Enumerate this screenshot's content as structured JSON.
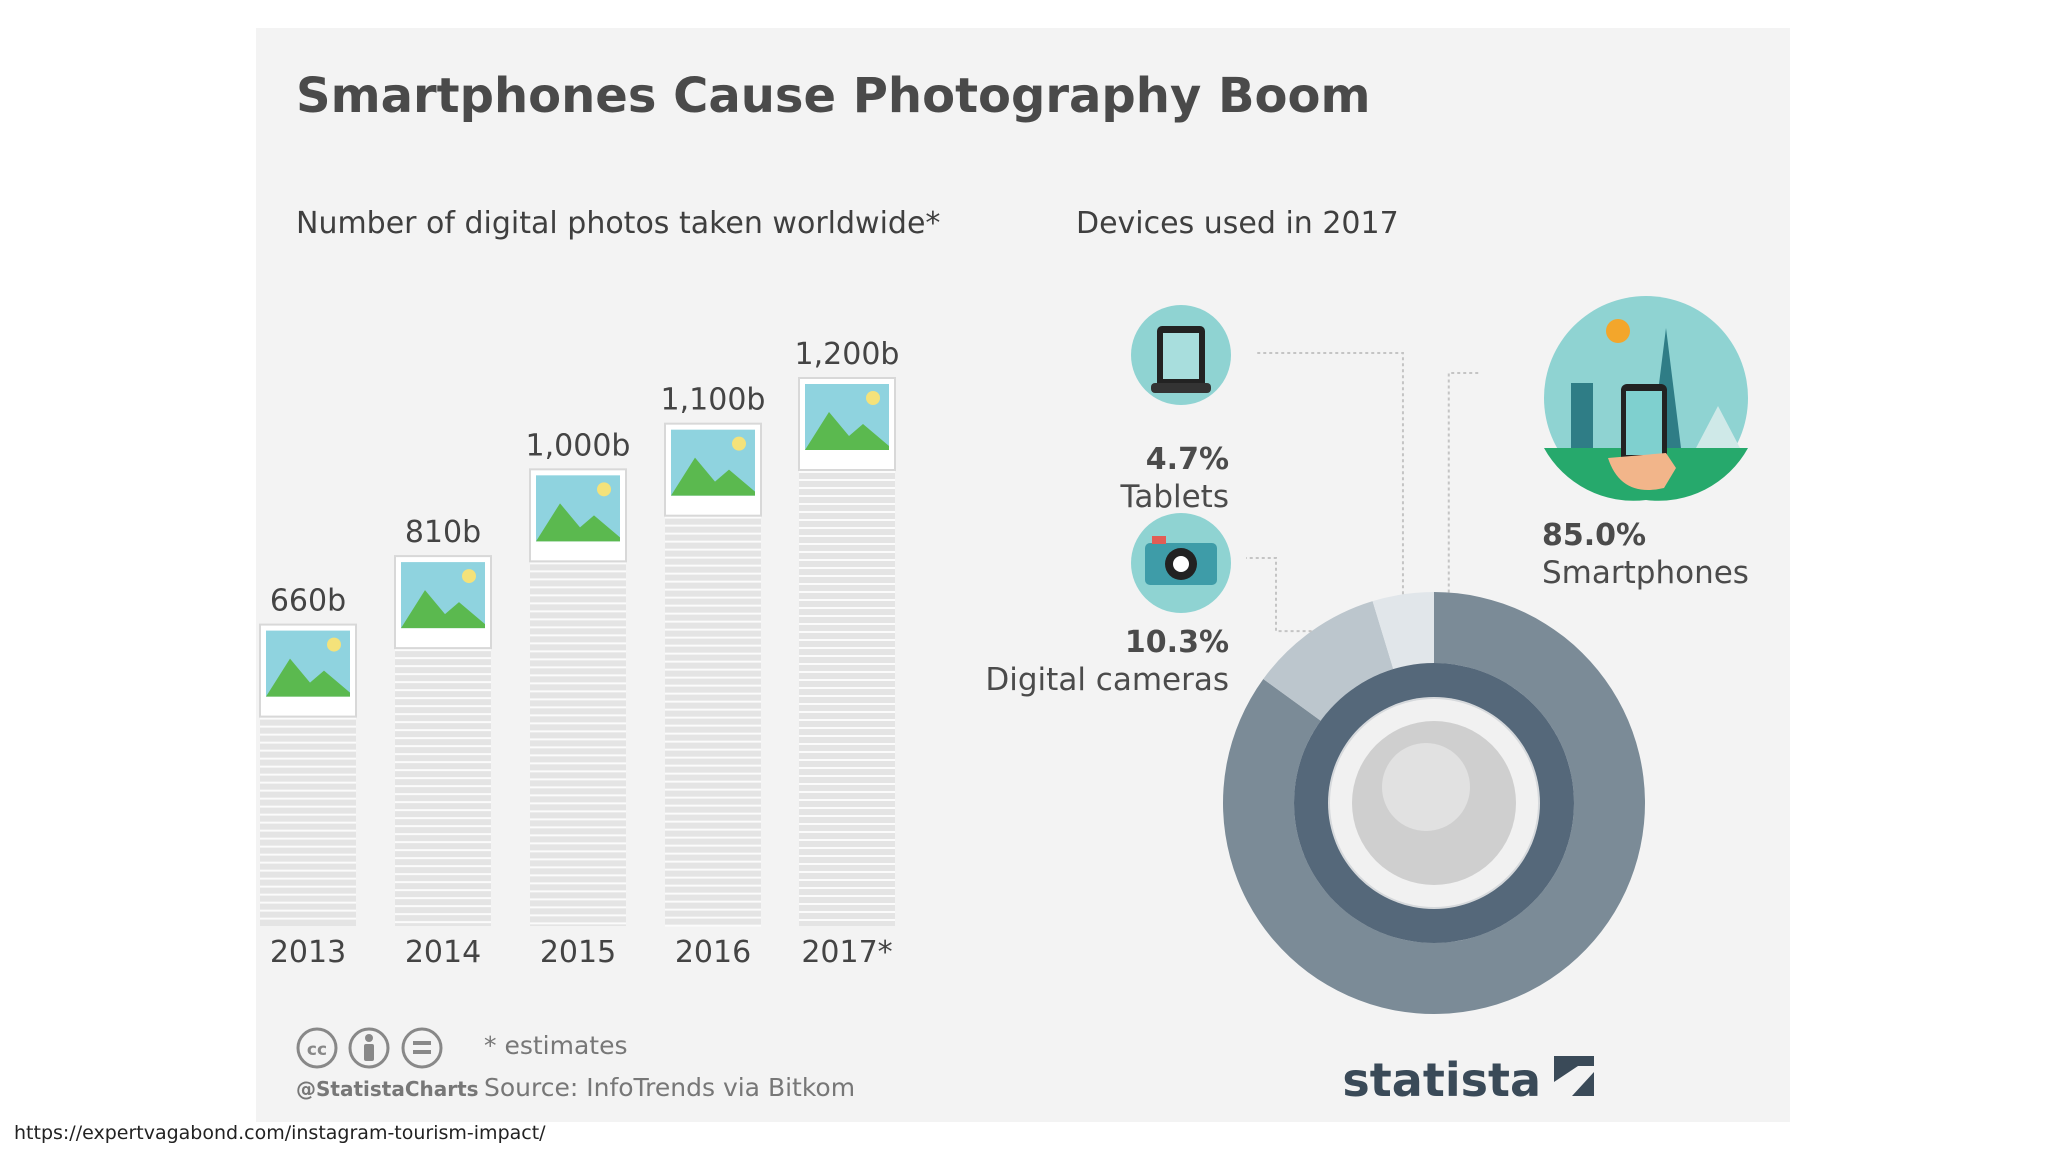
{
  "title": "Smartphones Cause Photography Boom",
  "left_subtitle": "Number of digital photos taken worldwide*",
  "right_subtitle": "Devices used in 2017",
  "footnote": "* estimates",
  "source": "Source: InfoTrends via Bitkom",
  "handle": "@StatistaCharts",
  "brand": "statista",
  "url": "https://expertvagabond.com/instagram-tourism-impact/",
  "chart_data": [
    {
      "type": "bar",
      "categories": [
        "2013",
        "2014",
        "2015",
        "2016",
        "2017*"
      ],
      "values": [
        660,
        810,
        1000,
        1100,
        1200
      ],
      "value_labels": [
        "660b",
        "810b",
        "1,000b",
        "1,100b",
        "1,200b"
      ],
      "title": "Number of digital photos taken worldwide*",
      "ylim": [
        0,
        1200
      ]
    },
    {
      "type": "pie",
      "title": "Devices used in 2017",
      "slices": [
        {
          "name": "Smartphones",
          "value": 85.0,
          "label": "85.0%",
          "color": "#7b8b97"
        },
        {
          "name": "Digital cameras",
          "value": 10.3,
          "label": "10.3%",
          "color": "#bcc6cd"
        },
        {
          "name": "Tablets",
          "value": 4.7,
          "label": "4.7%",
          "color": "#e1e6ea"
        }
      ]
    }
  ],
  "colors": {
    "bar_stack": "#e4e4e4",
    "photo_sky": "#8fd3df",
    "photo_hill": "#5bb94f",
    "sun": "#f4e27a",
    "icon_teal": "#8fd3d2"
  }
}
